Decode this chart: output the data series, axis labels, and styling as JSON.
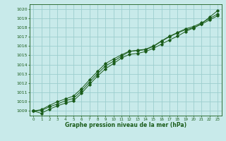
{
  "x": [
    0,
    1,
    2,
    3,
    4,
    5,
    6,
    7,
    8,
    9,
    10,
    11,
    12,
    13,
    14,
    15,
    16,
    17,
    18,
    19,
    20,
    21,
    22,
    23
  ],
  "line1": [
    1009.0,
    1008.75,
    1009.2,
    1009.55,
    1009.85,
    1010.1,
    1010.9,
    1011.85,
    1012.75,
    1013.55,
    1014.1,
    1014.7,
    1015.1,
    1015.2,
    1015.4,
    1015.75,
    1016.2,
    1016.65,
    1017.05,
    1017.55,
    1017.95,
    1018.4,
    1019.1,
    1019.8
  ],
  "line2": [
    1009.0,
    1009.05,
    1009.45,
    1009.75,
    1010.1,
    1010.35,
    1011.15,
    1012.1,
    1013.0,
    1013.85,
    1014.35,
    1014.9,
    1015.4,
    1015.55,
    1015.65,
    1016.0,
    1016.55,
    1017.05,
    1017.45,
    1017.85,
    1018.1,
    1018.5,
    1018.95,
    1019.45
  ],
  "line3": [
    1009.0,
    1009.15,
    1009.6,
    1010.0,
    1010.3,
    1010.6,
    1011.4,
    1012.35,
    1013.25,
    1014.1,
    1014.6,
    1015.05,
    1015.45,
    1015.5,
    1015.6,
    1015.95,
    1016.5,
    1017.0,
    1017.4,
    1017.75,
    1017.95,
    1018.35,
    1018.8,
    1019.25
  ],
  "bg_color": "#c8eaea",
  "line_color": "#1a5c1a",
  "grid_color": "#9ccece",
  "text_color": "#1a5c1a",
  "xlabel_text": "Graphe pression niveau de la mer (hPa)",
  "ylim_min": 1008.5,
  "ylim_max": 1020.5,
  "xlim_min": -0.5,
  "xlim_max": 23.5,
  "yticks": [
    1009,
    1010,
    1011,
    1012,
    1013,
    1014,
    1015,
    1016,
    1017,
    1018,
    1019,
    1020
  ],
  "xticks": [
    0,
    1,
    2,
    3,
    4,
    5,
    6,
    7,
    8,
    9,
    10,
    11,
    12,
    13,
    14,
    15,
    16,
    17,
    18,
    19,
    20,
    21,
    22,
    23
  ]
}
